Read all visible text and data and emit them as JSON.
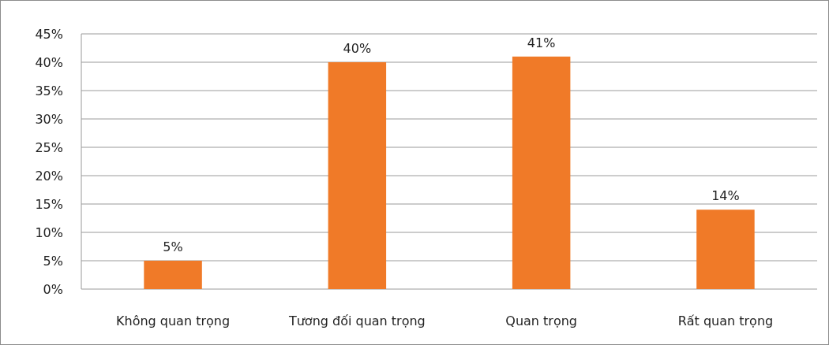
{
  "chart_data": {
    "type": "bar",
    "categories": [
      "Không quan trọng",
      "Tương đối quan trọng",
      "Quan trọng",
      "Rất quan trọng"
    ],
    "values": [
      5,
      40,
      41,
      14
    ],
    "value_labels": [
      "5%",
      "40%",
      "41%",
      "14%"
    ],
    "color": "#f07a28",
    "ylim": [
      0,
      45
    ],
    "yticks": [
      {
        "value": 0,
        "label": "0%"
      },
      {
        "value": 5,
        "label": "5%"
      },
      {
        "value": 10,
        "label": "10%"
      },
      {
        "value": 15,
        "label": "15%"
      },
      {
        "value": 20,
        "label": "20%"
      },
      {
        "value": 25,
        "label": "25%"
      },
      {
        "value": 30,
        "label": "30%"
      },
      {
        "value": 35,
        "label": "35%"
      },
      {
        "value": 40,
        "label": "40%"
      },
      {
        "value": 45,
        "label": "45%"
      }
    ],
    "grid": "y"
  }
}
